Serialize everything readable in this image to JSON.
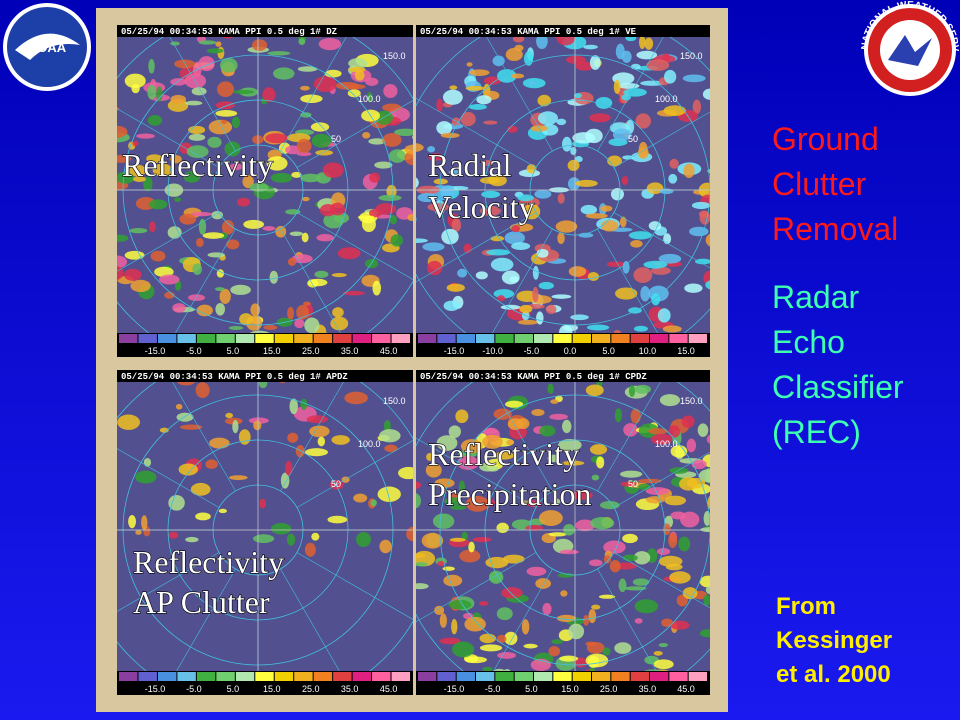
{
  "logos": {
    "left": "NOAA",
    "right": "NATIONAL WEATHER SERVICE"
  },
  "panels": [
    {
      "header": "05/25/94 00:34:53  KAMA   PPI   0.5 deg   1# DZ",
      "label": [
        "Reflectivity"
      ],
      "scale": [
        "-15.0",
        "-5.0",
        "5.0",
        "15.0",
        "25.0",
        "35.0",
        "45.0"
      ],
      "rings": [
        "150.0",
        "100.0",
        "50"
      ]
    },
    {
      "header": "05/25/94 00:34:53  KAMA   PPI   0.5 deg   1# VE",
      "label": [
        "Radial",
        "Velocity"
      ],
      "scale": [
        "-15.0",
        "-10.0",
        "-5.0",
        "0.0",
        "5.0",
        "10.0",
        "15.0"
      ],
      "rings": [
        "150.0",
        "100.0",
        "50"
      ]
    },
    {
      "header": "05/25/94 00:34:53  KAMA   PPI   0.5 deg   1# APDZ",
      "label": [
        "Reflectivity",
        "AP Clutter"
      ],
      "scale": [
        "-15.0",
        "-5.0",
        "5.0",
        "15.0",
        "25.0",
        "35.0",
        "45.0"
      ],
      "rings": [
        "150.0",
        "100.0",
        "50"
      ]
    },
    {
      "header": "05/25/94 00:34:53  KAMA   PPI   0.5 deg   1# CPDZ",
      "label": [
        "Reflectivity",
        "Precipitation"
      ],
      "scale": [
        "-15.0",
        "-5.0",
        "5.0",
        "15.0",
        "25.0",
        "35.0",
        "45.0"
      ],
      "rings": [
        "150.0",
        "100.0",
        "50"
      ]
    }
  ],
  "side": {
    "heading1": [
      "Ground",
      "Clutter",
      "Removal"
    ],
    "heading2": [
      "Radar",
      "Echo",
      "Classifier",
      "(REC)"
    ],
    "credit": [
      "From",
      "Kessinger",
      "et al. 2000"
    ]
  }
}
